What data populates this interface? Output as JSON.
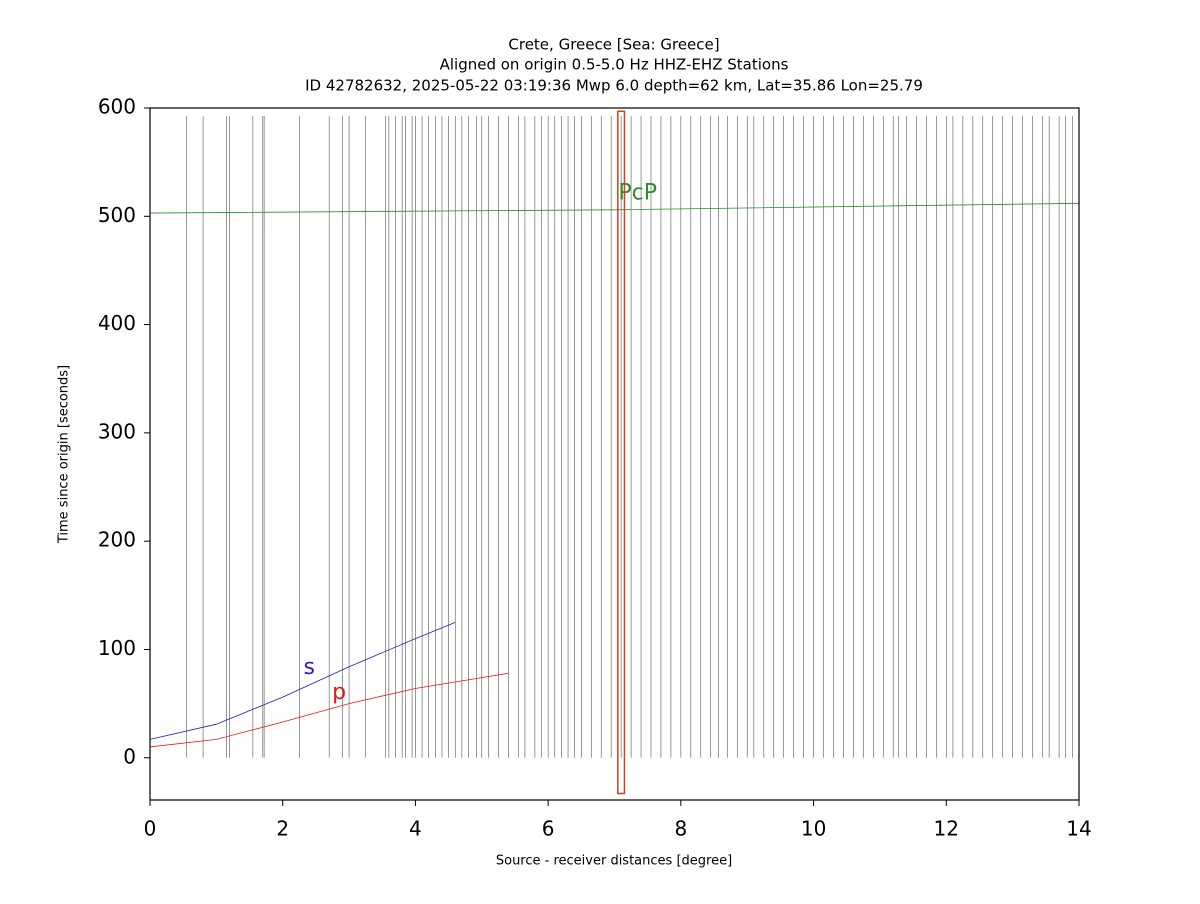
{
  "chart_data": {
    "type": "record-section",
    "title": "Crete, Greece [Sea: Greece]",
    "subtitle": "Aligned on origin 0.5-5.0 Hz HHZ-EHZ Stations",
    "subtitle2": "ID 42782632, 2025-05-22 03:19:36 Mwp 6.0 depth=62 km, Lat=35.86 Lon=25.79",
    "x_label": "Source - receiver distances [degree]",
    "y_label": "Time since origin [seconds]",
    "xlim": [
      0,
      14
    ],
    "ylim": [
      -39,
      600
    ],
    "xticks": [
      0,
      2,
      4,
      6,
      8,
      10,
      12,
      14
    ],
    "yticks": [
      0,
      100,
      200,
      300,
      400,
      500,
      600
    ],
    "trace_color": "#555555",
    "stations": [
      0.55,
      0.8,
      1.15,
      1.2,
      1.55,
      1.7,
      1.72,
      2.25,
      2.7,
      2.9,
      3.0,
      3.25,
      3.55,
      3.6,
      3.7,
      3.8,
      3.85,
      3.95,
      4.0,
      4.1,
      4.2,
      4.3,
      4.4,
      4.5,
      4.6,
      4.7,
      4.8,
      4.92,
      5.0,
      5.1,
      5.25,
      5.4,
      5.55,
      5.65,
      5.8,
      5.9,
      6.0,
      6.1,
      6.2,
      6.3,
      6.4,
      6.5,
      6.65,
      6.8,
      6.95,
      7.1,
      7.25,
      7.4,
      7.55,
      7.7,
      7.85,
      8.0,
      8.15,
      8.3,
      8.45,
      8.57,
      8.7,
      8.85,
      9.0,
      9.1,
      9.25,
      9.4,
      9.55,
      9.7,
      9.85,
      10.0,
      10.15,
      10.3,
      10.45,
      10.6,
      10.75,
      10.9,
      11.05,
      11.2,
      11.28,
      11.4,
      11.55,
      11.7,
      11.85,
      12.0,
      12.1,
      12.25,
      12.4,
      12.55,
      12.7,
      12.85,
      13.0,
      13.15,
      13.3,
      13.45,
      13.55,
      13.7,
      13.8,
      13.9
    ],
    "series": [
      {
        "name": "p",
        "color": "#e41a1c",
        "x": [
          0,
          1,
          2,
          3,
          4,
          5,
          5.4
        ],
        "values": [
          10,
          17,
          33,
          50,
          64,
          74,
          78
        ],
        "label_x": 2.85,
        "label_y": 60
      },
      {
        "name": "s",
        "color": "#1f1fbf",
        "x": [
          0,
          1,
          2,
          3,
          4,
          4.6
        ],
        "values": [
          17,
          31,
          56,
          84,
          110,
          125
        ],
        "label_x": 2.4,
        "label_y": 83
      },
      {
        "name": "PcP",
        "color": "#2e8b2e",
        "x": [
          0,
          7,
          14
        ],
        "values": [
          503,
          506,
          512
        ],
        "label_x": 7.35,
        "label_y": 521
      }
    ],
    "highlight": {
      "color": "#d04020",
      "x": [
        7.05,
        7.15
      ],
      "y": [
        -33,
        597
      ]
    }
  }
}
